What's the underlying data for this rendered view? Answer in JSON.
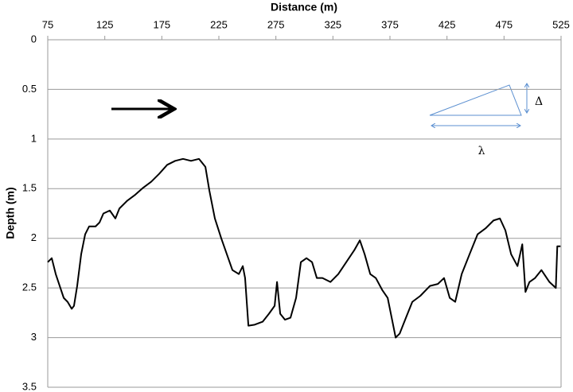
{
  "chart_data": {
    "type": "line",
    "title": "Distance (m)",
    "y_label": "Depth (m)",
    "annotations": [
      "Δ",
      "λ"
    ],
    "x": [
      75,
      78.5,
      82,
      85.5,
      89,
      92.4,
      96,
      98,
      100.8,
      104.3,
      107.8,
      111.3,
      116.9,
      120.4,
      123.8,
      129.4,
      134.3,
      137.8,
      144.8,
      151.8,
      158.7,
      165.7,
      172.7,
      179.7,
      186.7,
      193.6,
      200.6,
      207.6,
      213.2,
      216.7,
      221.5,
      227.1,
      232,
      236.9,
      242.5,
      246,
      248,
      250.9,
      256.4,
      263.4,
      268.9,
      273.9,
      276,
      278.8,
      283,
      287.8,
      292.7,
      296.9,
      301.8,
      306.7,
      310.9,
      315.8,
      322.8,
      329.7,
      336.7,
      343.7,
      348.6,
      352.8,
      357.7,
      362.6,
      368.2,
      373,
      376.5,
      380,
      383.5,
      389,
      394.6,
      401.6,
      410,
      417,
      422.4,
      427.4,
      432.2,
      437.9,
      444.8,
      451.8,
      458.8,
      465.8,
      471.4,
      476.2,
      481.2,
      486.8,
      491,
      493.8,
      497.3,
      502.2,
      507.8,
      514.8,
      520.4,
      521.7,
      524.5
    ],
    "series": [
      {
        "color": "#000000",
        "values": [
          2.24,
          2.2,
          2.36,
          2.48,
          2.6,
          2.64,
          2.71,
          2.68,
          2.48,
          2.16,
          1.96,
          1.88,
          1.88,
          1.84,
          1.75,
          1.72,
          1.8,
          1.7,
          1.62,
          1.56,
          1.49,
          1.43,
          1.35,
          1.26,
          1.22,
          1.2,
          1.22,
          1.2,
          1.28,
          1.52,
          1.8,
          2.0,
          2.16,
          2.32,
          2.36,
          2.28,
          2.4,
          2.88,
          2.87,
          2.84,
          2.76,
          2.68,
          2.44,
          2.76,
          2.82,
          2.8,
          2.6,
          2.24,
          2.2,
          2.24,
          2.4,
          2.4,
          2.44,
          2.36,
          2.24,
          2.12,
          2.02,
          2.16,
          2.36,
          2.4,
          2.52,
          2.6,
          2.8,
          3.0,
          2.96,
          2.8,
          2.64,
          2.58,
          2.48,
          2.46,
          2.4,
          2.6,
          2.64,
          2.36,
          2.16,
          1.96,
          1.9,
          1.82,
          1.8,
          1.92,
          2.16,
          2.28,
          2.06,
          2.54,
          2.44,
          2.4,
          2.32,
          2.44,
          2.5,
          2.08,
          2.08
        ]
      }
    ],
    "xlim": [
      75,
      525
    ],
    "xticks": [
      75,
      125,
      175,
      225,
      275,
      325,
      375,
      425,
      475,
      525
    ],
    "ylim": [
      0,
      3.5
    ],
    "yticks": [
      0,
      0.5,
      1,
      1.5,
      2,
      2.5,
      3,
      3.5
    ],
    "y_reversed": true,
    "grid": true
  }
}
